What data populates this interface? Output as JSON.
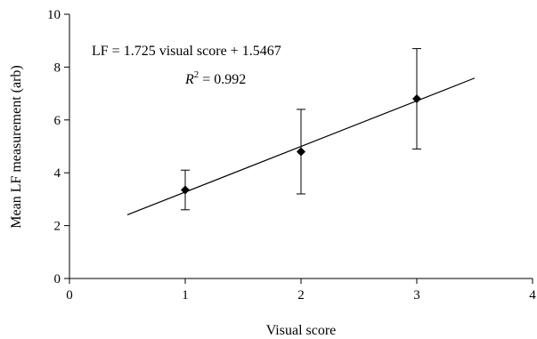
{
  "chart_data": {
    "type": "scatter",
    "xlabel": "Visual score",
    "ylabel": "Mean LF measurement (arb)",
    "xlim": [
      0,
      4
    ],
    "ylim": [
      0,
      10
    ],
    "x_ticks": [
      0,
      1,
      2,
      3,
      4
    ],
    "y_ticks": [
      0,
      2,
      4,
      6,
      8,
      10
    ],
    "grid": false,
    "marker": "diamond",
    "color": "#000000",
    "points": [
      {
        "x": 1,
        "y": 3.35,
        "err_low": 2.6,
        "err_high": 4.1
      },
      {
        "x": 2,
        "y": 4.8,
        "err_low": 3.2,
        "err_high": 6.4
      },
      {
        "x": 3,
        "y": 6.8,
        "err_low": 4.9,
        "err_high": 8.7
      }
    ],
    "trendline": {
      "slope": 1.725,
      "intercept": 1.5467,
      "x_range": [
        0.5,
        3.5
      ]
    },
    "annotations": {
      "equation": "LF = 1.725 visual score + 1.5467",
      "r_symbol": "R",
      "r_exponent": "2",
      "r_value": " = 0.992"
    }
  }
}
